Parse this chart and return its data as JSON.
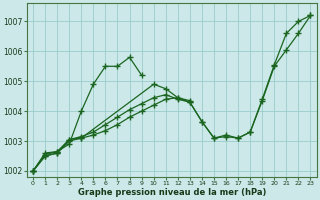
{
  "xlabel": "Graphe pression niveau de la mer (hPa)",
  "background_color": "#cce8e8",
  "grid_color": "#99cccc",
  "line_color": "#1a6620",
  "xlim": [
    -0.5,
    23.5
  ],
  "ylim": [
    1001.8,
    1007.6
  ],
  "yticks": [
    1002,
    1003,
    1004,
    1005,
    1006,
    1007
  ],
  "xticks": [
    0,
    1,
    2,
    3,
    4,
    5,
    6,
    7,
    8,
    9,
    10,
    11,
    12,
    13,
    14,
    15,
    16,
    17,
    18,
    19,
    20,
    21,
    22,
    23
  ],
  "lines": [
    {
      "x": [
        0,
        1,
        2,
        3,
        4,
        5,
        6,
        7,
        8,
        9
      ],
      "y": [
        1002.0,
        1002.6,
        1002.65,
        1002.9,
        1004.0,
        1004.9,
        1005.5,
        1005.5,
        1005.8,
        1005.2
      ]
    },
    {
      "x": [
        0,
        1,
        2,
        3,
        4,
        10,
        11,
        12,
        13
      ],
      "y": [
        1002.0,
        1002.55,
        1002.65,
        1003.05,
        1003.1,
        1004.9,
        1004.75,
        1004.45,
        1004.35
      ]
    },
    {
      "x": [
        0,
        1,
        2,
        3,
        4,
        5,
        6,
        7,
        8,
        9,
        10,
        11,
        12,
        13,
        14,
        15,
        16,
        17,
        18,
        19,
        20,
        21,
        22,
        23
      ],
      "y": [
        1002.0,
        1002.5,
        1002.6,
        1003.0,
        1003.1,
        1003.2,
        1003.35,
        1003.55,
        1003.8,
        1004.0,
        1004.2,
        1004.4,
        1004.45,
        1004.3,
        1003.65,
        1003.1,
        1003.15,
        1003.1,
        1003.3,
        1004.35,
        1005.5,
        1006.05,
        1006.6,
        1007.2
      ]
    },
    {
      "x": [
        0,
        1,
        2,
        3,
        4,
        5,
        6,
        7,
        8,
        9,
        10,
        11,
        12,
        13,
        14,
        15,
        16,
        17,
        18,
        19,
        20,
        21,
        22,
        23
      ],
      "y": [
        1002.0,
        1002.5,
        1002.6,
        1003.05,
        1003.15,
        1003.3,
        1003.55,
        1003.8,
        1004.05,
        1004.25,
        1004.45,
        1004.55,
        1004.4,
        1004.3,
        1003.65,
        1003.1,
        1003.2,
        1003.1,
        1003.3,
        1004.4,
        1005.55,
        1006.6,
        1007.0,
        1007.2
      ]
    }
  ]
}
